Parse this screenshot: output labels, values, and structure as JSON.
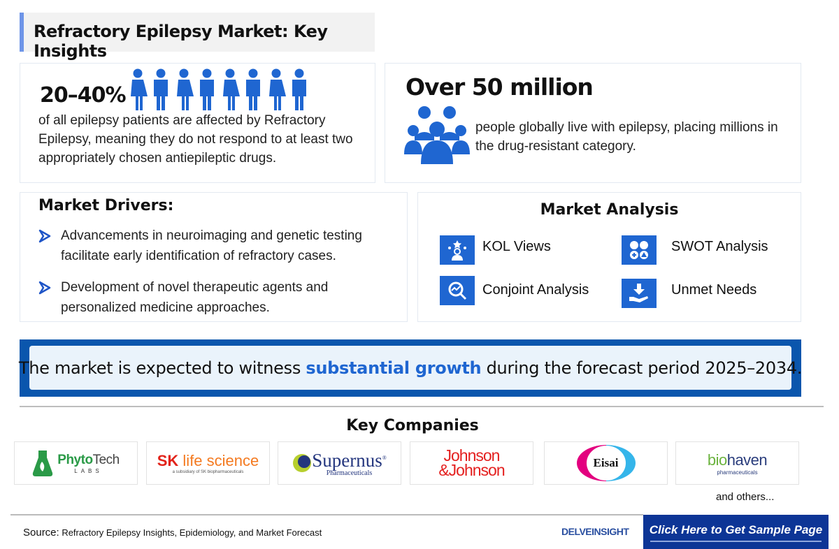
{
  "title": "Refractory Epilepsy Market: Key Insights",
  "stat1": {
    "value": "20–40%",
    "text": "of all epilepsy patients are affected by Refractory Epilepsy, meaning they do not respond to at least two appropriately chosen antiepileptic drugs.",
    "icon": "people-row-icon"
  },
  "stat2": {
    "value": "Over 50 million",
    "text": "people globally live with epilepsy, placing millions in the drug-resistant category.",
    "icon": "group-icon"
  },
  "drivers": {
    "heading": "Market Drivers:",
    "items": [
      "Advancements in neuroimaging and genetic testing facilitate early identification of refractory cases.",
      "Development of novel therapeutic agents and personalized medicine approaches."
    ]
  },
  "analysis": {
    "heading": "Market Analysis",
    "items": [
      {
        "label": "KOL Views",
        "icon": "kol-icon"
      },
      {
        "label": "SWOT Analysis",
        "icon": "swot-icon"
      },
      {
        "label": "Conjoint Analysis",
        "icon": "conjoint-icon"
      },
      {
        "label": "Unmet Needs",
        "icon": "unmet-needs-icon"
      }
    ]
  },
  "banner": {
    "pre": "The market is expected to witness ",
    "highlight": "substantial growth",
    "post": " during the forecast period 2025–2034."
  },
  "companies": {
    "heading": "Key Companies",
    "logos": [
      "PhytoTech LABS",
      "SK life science",
      "Supernus Pharmaceuticals",
      "Johnson & Johnson",
      "Eisai",
      "biohaven pharmaceuticals"
    ],
    "sk_sub": "a subsidiary of SK biopharmaceuticals",
    "others": "and others..."
  },
  "footer": {
    "source_label": "Source:",
    "source_text": " Refractory Epilepsy Insights, Epidemiology, and Market Forecast",
    "brand": "DELVEINSIGHT",
    "cta": "Click Here to Get Sample Page"
  },
  "colors": {
    "accent": "#1f66d1",
    "banner": "#0a56ad",
    "cta": "#0d3596"
  }
}
